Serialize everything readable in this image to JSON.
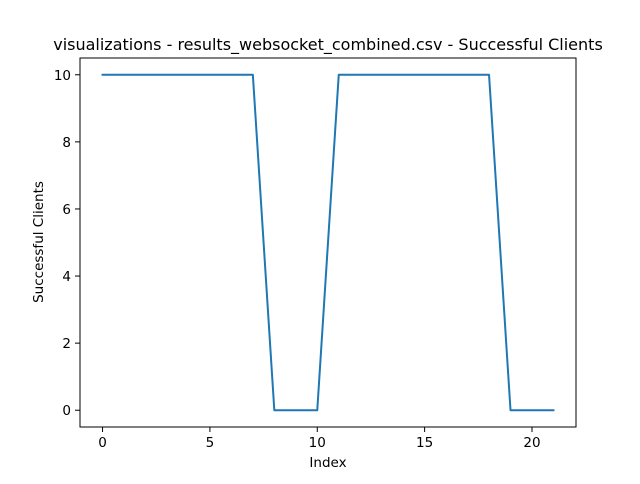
{
  "chart_data": {
    "type": "line",
    "title": "visualizations - results_websocket_combined.csv - Successful Clients",
    "xlabel": "Index",
    "ylabel": "Successful Clients",
    "xlim": [
      -1.05,
      22.05
    ],
    "ylim": [
      -0.5,
      10.5
    ],
    "xticks": [
      0,
      5,
      10,
      15,
      20
    ],
    "yticks": [
      0,
      2,
      4,
      6,
      8,
      10
    ],
    "xtick_labels": [
      "0",
      "5",
      "10",
      "15",
      "20"
    ],
    "ytick_labels": [
      "0",
      "2",
      "4",
      "6",
      "8",
      "10"
    ],
    "grid": false,
    "legend": "none",
    "series": [
      {
        "color": "#1f77b4",
        "x": [
          0,
          1,
          2,
          3,
          4,
          5,
          6,
          7,
          8,
          9,
          10,
          11,
          12,
          13,
          14,
          15,
          16,
          17,
          18,
          19,
          20,
          21
        ],
        "y": [
          10,
          10,
          10,
          10,
          10,
          10,
          10,
          10,
          0,
          0,
          0,
          10,
          10,
          10,
          10,
          10,
          10,
          10,
          10,
          0,
          0,
          0
        ]
      }
    ]
  }
}
